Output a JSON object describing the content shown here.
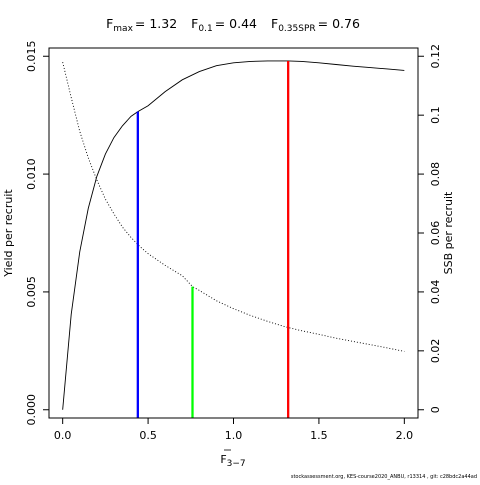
{
  "title": {
    "parts": [
      {
        "main": "F",
        "sub": "max",
        "value": "= 1.32"
      },
      {
        "main": "F",
        "sub": "0.1",
        "value": "= 0.44"
      },
      {
        "main": "F",
        "sub": "0.35SPR",
        "value": "= 0.76"
      }
    ]
  },
  "chart_data": {
    "type": "line",
    "xlabel": {
      "main": "F",
      "sub": "3−7"
    },
    "ylabel_left": "Yield per recruit",
    "ylabel_right": "SSB per recruit",
    "xlim": [
      -0.08,
      2.08
    ],
    "ylim_left": [
      -0.00035,
      0.01535
    ],
    "ylim_right": [
      -0.0028,
      0.1228
    ],
    "x_ticks": [
      0.0,
      0.5,
      1.0,
      1.5,
      2.0
    ],
    "x_tick_labels": [
      "0.0",
      "0.5",
      "1.0",
      "1.5",
      "2.0"
    ],
    "y_left_ticks": [
      0.0,
      0.005,
      0.01,
      0.015
    ],
    "y_left_tick_labels": [
      "0.000",
      "0.005",
      "0.010",
      "0.015"
    ],
    "y_right_ticks": [
      0,
      0.02,
      0.04,
      0.06,
      0.08,
      0.1,
      0.12
    ],
    "y_right_tick_labels": [
      "0",
      "0.02",
      "0.04",
      "0.06",
      "0.08",
      "0.1",
      "0.12"
    ],
    "grid": false,
    "series": [
      {
        "axis": "left",
        "style": "solid",
        "color": "#000000",
        "x": [
          0.0,
          0.05,
          0.1,
          0.15,
          0.2,
          0.25,
          0.3,
          0.35,
          0.4,
          0.44,
          0.5,
          0.6,
          0.7,
          0.8,
          0.9,
          1.0,
          1.1,
          1.2,
          1.32,
          1.4,
          1.5,
          1.6,
          1.7,
          1.8,
          1.9,
          2.0
        ],
        "y": [
          0.0,
          0.00405,
          0.0067,
          0.00855,
          0.0099,
          0.01085,
          0.01155,
          0.01205,
          0.01245,
          0.01265,
          0.0129,
          0.0135,
          0.014,
          0.01435,
          0.0146,
          0.01472,
          0.01478,
          0.0148,
          0.0148,
          0.01478,
          0.01472,
          0.01465,
          0.01458,
          0.01452,
          0.01446,
          0.0144
        ]
      },
      {
        "axis": "right",
        "style": "dotted",
        "color": "#000000",
        "x": [
          0.0,
          0.05,
          0.1,
          0.15,
          0.2,
          0.25,
          0.3,
          0.35,
          0.4,
          0.45,
          0.5,
          0.6,
          0.7,
          0.76,
          0.8,
          0.9,
          1.0,
          1.1,
          1.2,
          1.3,
          1.4,
          1.5,
          1.6,
          1.7,
          1.8,
          1.9,
          2.0
        ],
        "y": [
          0.118,
          0.106,
          0.0945,
          0.0855,
          0.078,
          0.0715,
          0.0665,
          0.062,
          0.0585,
          0.0555,
          0.053,
          0.049,
          0.0455,
          0.0418,
          0.0405,
          0.037,
          0.0343,
          0.032,
          0.03,
          0.0282,
          0.0268,
          0.0256,
          0.0243,
          0.0232,
          0.0221,
          0.021,
          0.0198
        ]
      }
    ],
    "reference_lines": [
      {
        "x": 0.44,
        "y_left": 0.01265,
        "color": "#0000ff"
      },
      {
        "x": 0.76,
        "y_right": 0.0418,
        "color": "#00ff00"
      },
      {
        "x": 1.32,
        "y_left": 0.0148,
        "color": "#ff0000"
      }
    ]
  },
  "footer": "stockassessment.org, KES-course2020_ANBU, r13314 , git: c28bdc2a44ad"
}
